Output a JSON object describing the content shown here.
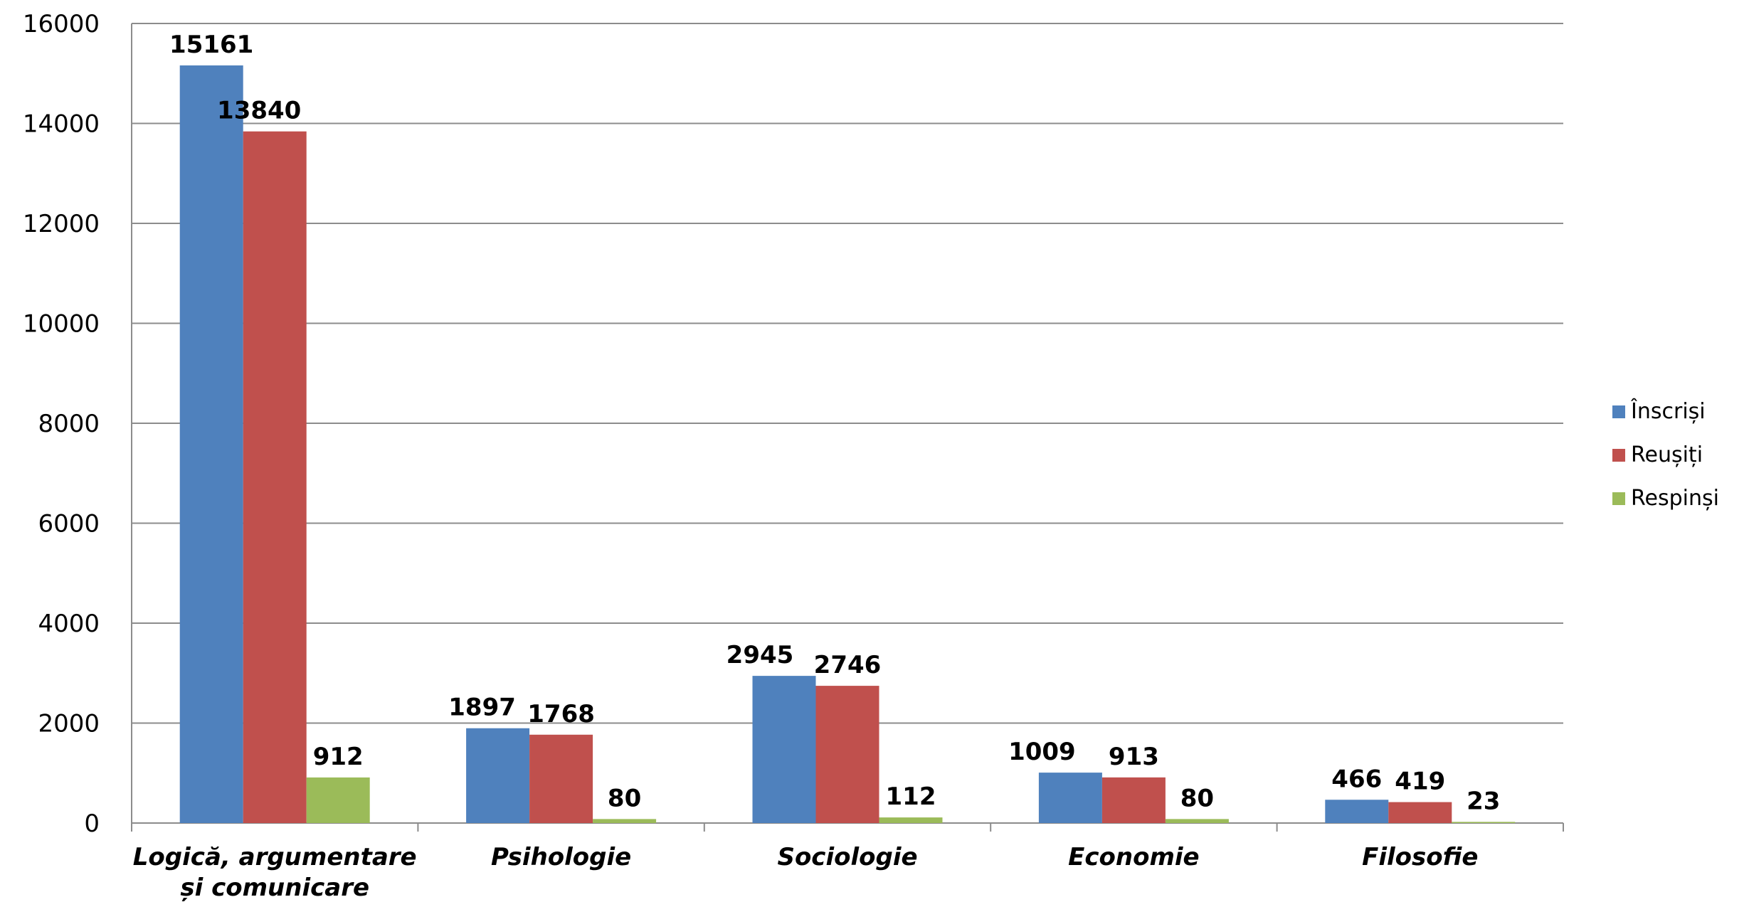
{
  "chart_data": {
    "type": "bar",
    "categories": [
      [
        "Logică, argumentare",
        "și comunicare"
      ],
      [
        "Psihologie"
      ],
      [
        "Sociologie"
      ],
      [
        "Economie"
      ],
      [
        "Filosofie"
      ]
    ],
    "series": [
      {
        "name": "Înscriși",
        "color": "#4F81BD",
        "values": [
          15161,
          1897,
          2945,
          1009,
          466
        ]
      },
      {
        "name": "Reușiți",
        "color": "#C0504D",
        "values": [
          13840,
          1768,
          2746,
          913,
          419
        ]
      },
      {
        "name": "Respinși",
        "color": "#9BBB59",
        "values": [
          912,
          80,
          112,
          80,
          23
        ]
      }
    ],
    "ylim": [
      0,
      16000
    ],
    "yticks": [
      "0",
      "2000",
      "4000",
      "6000",
      "8000",
      "10000",
      "12000",
      "14000",
      "16000"
    ],
    "grid": true,
    "legend": "right",
    "title": "",
    "xlabel": "",
    "ylabel": ""
  }
}
